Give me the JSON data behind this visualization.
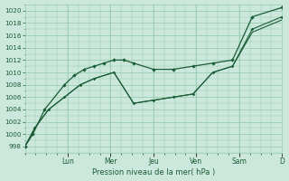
{
  "xlabel": "Pression niveau de la mer( hPa )",
  "ylim": [
    997,
    1021
  ],
  "xlim": [
    0,
    13
  ],
  "yticks": [
    998,
    1000,
    1002,
    1004,
    1006,
    1008,
    1010,
    1012,
    1014,
    1016,
    1018,
    1020
  ],
  "day_labels": [
    "Lun",
    "Mer",
    "Jeu",
    "Ven",
    "Sam",
    "D"
  ],
  "day_positions": [
    2.17,
    4.33,
    6.5,
    8.67,
    10.83,
    13.0
  ],
  "background_color": "#cce8dc",
  "grid_color": "#99ccb3",
  "line_color": "#1a5c35",
  "line1_x": [
    0,
    0.4,
    1.0,
    2.0,
    2.5,
    3.0,
    3.5,
    4.0,
    4.5,
    5.0,
    5.5,
    6.5,
    7.5,
    8.5,
    9.5,
    10.5,
    11.5,
    13.0
  ],
  "line1_y": [
    998,
    1000,
    1004,
    1008,
    1009.5,
    1010.5,
    1011,
    1011.5,
    1012,
    1012,
    1011.5,
    1010.5,
    1010.5,
    1011,
    1011.5,
    1012,
    1019,
    1020.5
  ],
  "line2_x": [
    0,
    0.5,
    1.2,
    2.0,
    2.8,
    3.5,
    4.5,
    5.5,
    6.5,
    7.5,
    8.5,
    9.5,
    10.5,
    11.5,
    13.0
  ],
  "line2_y": [
    998,
    1001,
    1004,
    1006,
    1008,
    1009,
    1010,
    1005,
    1005.5,
    1006,
    1006.5,
    1010,
    1011,
    1017,
    1019
  ],
  "line3_x": [
    0,
    0.5,
    1.2,
    2.0,
    2.8,
    3.5,
    4.5,
    5.5,
    6.5,
    7.5,
    8.5,
    9.5,
    10.5,
    11.5,
    13.0
  ],
  "line3_y": [
    998,
    1001,
    1004,
    1006,
    1008,
    1009,
    1010,
    1005,
    1005.5,
    1006,
    1006.5,
    1010,
    1011,
    1016.5,
    1018.5
  ]
}
